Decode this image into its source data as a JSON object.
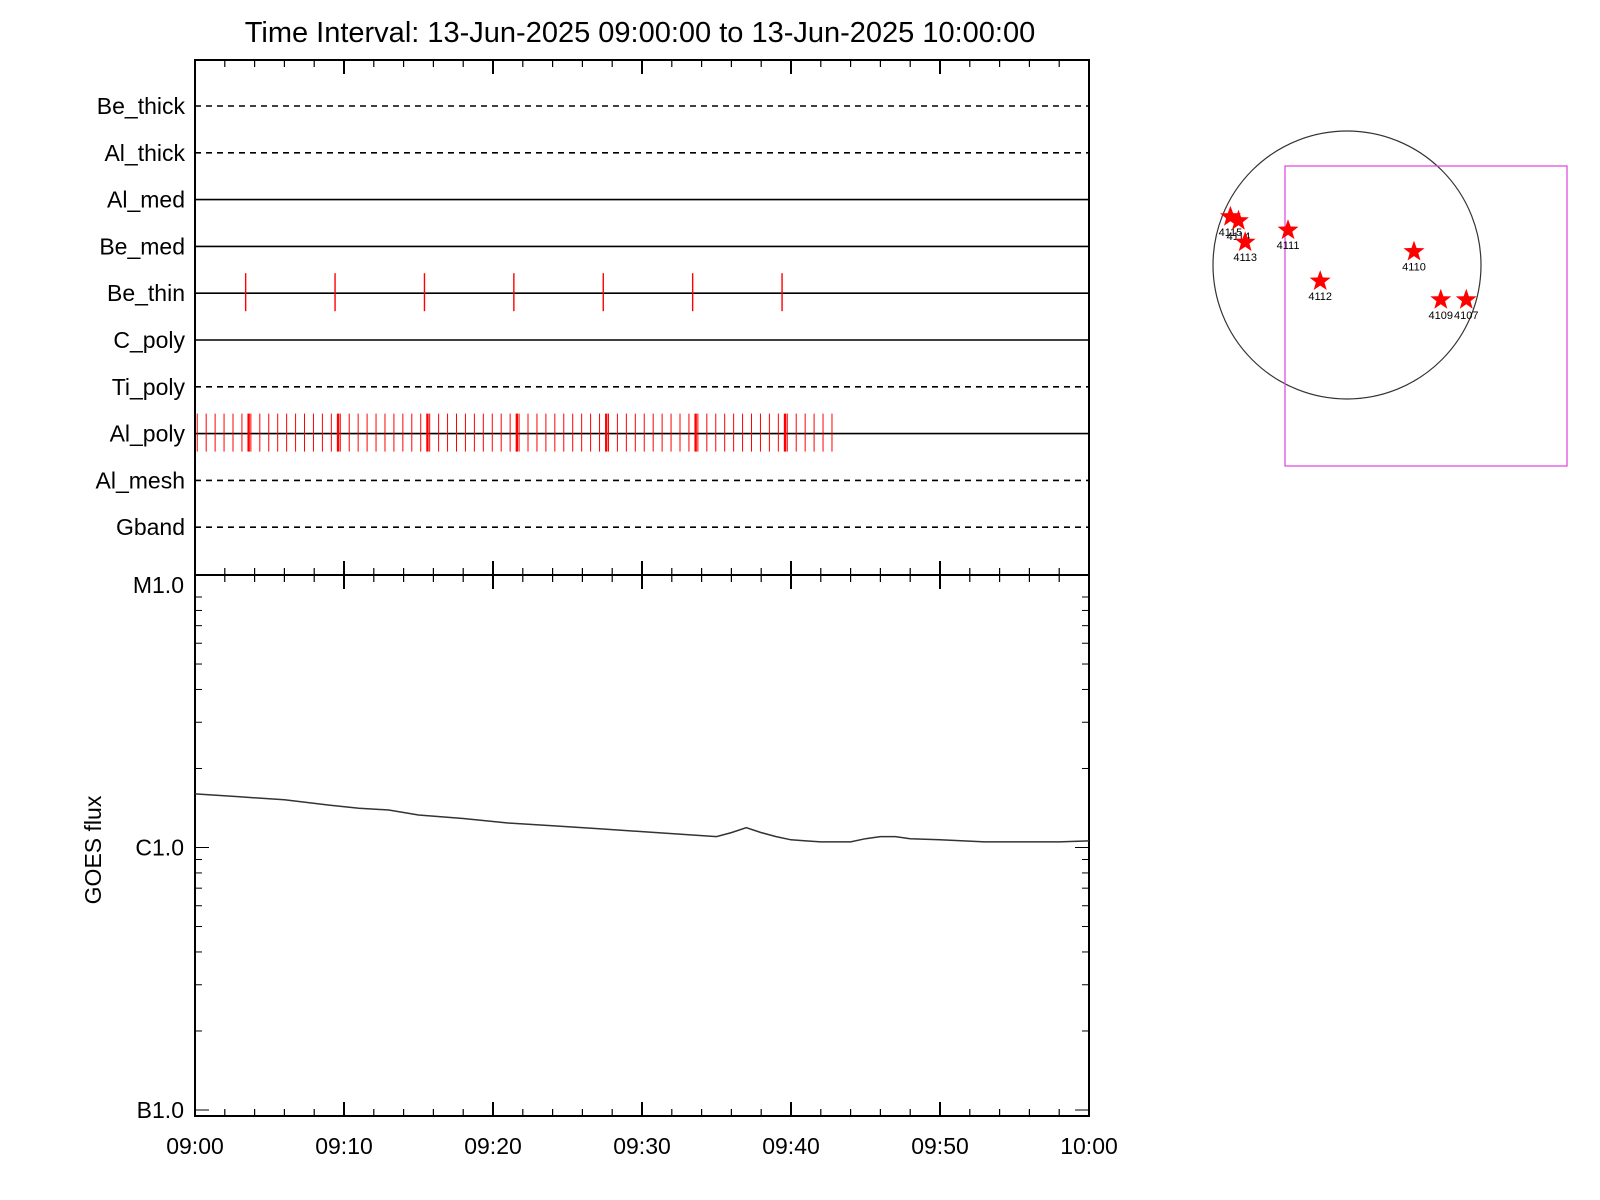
{
  "chart_data": [
    {
      "type": "timeline",
      "title": "Time Interval: 13-Jun-2025 09:00:00 to 13-Jun-2025 10:00:00",
      "x_range": [
        "09:00",
        "10:00"
      ],
      "rows": [
        {
          "label": "Be_thick",
          "style": "dashed",
          "marks": []
        },
        {
          "label": "Al_thick",
          "style": "dashed",
          "marks": []
        },
        {
          "label": "Al_med",
          "style": "solid",
          "marks": []
        },
        {
          "label": "Be_med",
          "style": "solid",
          "marks": []
        },
        {
          "label": "Be_thin",
          "style": "solid",
          "marks": [
            3.4,
            9.4,
            15.4,
            21.4,
            27.4,
            33.4,
            39.4
          ]
        },
        {
          "label": "C_poly",
          "style": "solid",
          "marks": []
        },
        {
          "label": "Ti_poly",
          "style": "dashed",
          "marks": []
        },
        {
          "label": "Al_poly",
          "style": "solid",
          "mark_range_minutes": [
            0.15,
            42.9
          ],
          "mark_step_minutes": 0.6,
          "emphasis_marks": [
            3.6,
            9.6,
            15.6,
            21.6,
            27.6,
            33.6,
            39.6
          ]
        },
        {
          "label": "Al_mesh",
          "style": "dashed",
          "marks": []
        },
        {
          "label": "Gband",
          "style": "dashed",
          "marks": []
        }
      ],
      "mark_color": "#ff0000"
    },
    {
      "type": "line",
      "ylabel": "GOES flux",
      "yscale": "log",
      "y_ticks": [
        {
          "label": "M1.0",
          "value": 1e-05
        },
        {
          "label": "C1.0",
          "value": 1e-06
        },
        {
          "label": "B1.0",
          "value": 1e-07
        }
      ],
      "ylim": [
        1e-07,
        1e-05
      ],
      "x_ticks": [
        "09:00",
        "09:10",
        "09:20",
        "09:30",
        "09:40",
        "09:50",
        "10:00"
      ],
      "series": [
        {
          "minutes": [
            0,
            3,
            6,
            9,
            11,
            13,
            15,
            18,
            21,
            24,
            27,
            30,
            33,
            35,
            36,
            37,
            38,
            39,
            40,
            41,
            42,
            44,
            45,
            46,
            47,
            48,
            50,
            53,
            56,
            58,
            60
          ],
          "values": [
            1.6e-06,
            1.56e-06,
            1.52e-06,
            1.45e-06,
            1.41e-06,
            1.39e-06,
            1.33e-06,
            1.29e-06,
            1.24e-06,
            1.21e-06,
            1.18e-06,
            1.15e-06,
            1.12e-06,
            1.1e-06,
            1.14e-06,
            1.19e-06,
            1.14e-06,
            1.1e-06,
            1.07e-06,
            1.06e-06,
            1.05e-06,
            1.05e-06,
            1.08e-06,
            1.1e-06,
            1.1e-06,
            1.08e-06,
            1.07e-06,
            1.05e-06,
            1.05e-06,
            1.05e-06,
            1.06e-06
          ],
          "color": "#333333"
        }
      ]
    },
    {
      "type": "sun_map",
      "circle_color": "#333333",
      "box_color": "#e040e0",
      "marker_color": "#ff0000",
      "regions": [
        {
          "label": "4115",
          "x": -0.87,
          "y": 0.36
        },
        {
          "label": "4114",
          "x": -0.81,
          "y": 0.33
        },
        {
          "label": "4113",
          "x": -0.76,
          "y": 0.17
        },
        {
          "label": "4111",
          "x": -0.44,
          "y": 0.26
        },
        {
          "label": "4110",
          "x": 0.5,
          "y": 0.1
        },
        {
          "label": "4112",
          "x": -0.2,
          "y": -0.12
        },
        {
          "label": "4109",
          "x": 0.7,
          "y": -0.26
        },
        {
          "label": "4107",
          "x": 0.89,
          "y": -0.26
        }
      ]
    }
  ]
}
